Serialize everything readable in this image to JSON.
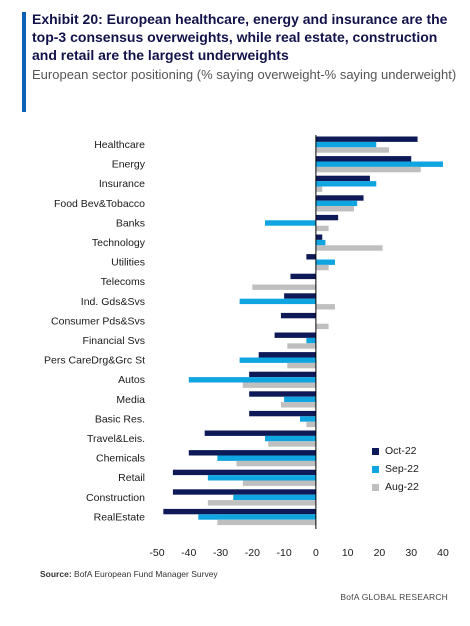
{
  "header": {
    "title": "Exhibit 20: European healthcare, energy and insurance are the top-3 consensus overweights, while real estate, construction and retail are the largest underweights",
    "subtitle": "European sector positioning (% saying overweight-% saying underweight)"
  },
  "footer": {
    "source_label": "Source:",
    "source_text": "BofA European Fund Manager Survey",
    "brand": "BofA GLOBAL RESEARCH"
  },
  "colors": {
    "oct": "#0e1a57",
    "sep": "#0ea5e0",
    "aug": "#bfbfbf"
  },
  "chart_data": {
    "type": "bar",
    "orientation": "horizontal",
    "categories": [
      "Healthcare",
      "Energy",
      "Insurance",
      "Food Bev&Tobacco",
      "Banks",
      "Technology",
      "Utilities",
      "Telecoms",
      "Ind. Gds&Svs",
      "Consumer Pds&Svs",
      "Financial Svs",
      "Pers CareDrg&Grc St",
      "Autos",
      "Media",
      "Basic Res.",
      "Travel&Leis.",
      "Chemicals",
      "Retail",
      "Construction",
      "RealEstate"
    ],
    "series": [
      {
        "name": "Oct-22",
        "values": [
          32,
          30,
          17,
          15,
          7,
          2,
          -3,
          -8,
          -10,
          -11,
          -13,
          -18,
          -21,
          -21,
          -21,
          -35,
          -40,
          -45,
          -45,
          -48
        ]
      },
      {
        "name": "Sep-22",
        "values": [
          19,
          40,
          19,
          13,
          -16,
          3,
          6,
          0,
          -24,
          0,
          -3,
          -24,
          -40,
          -10,
          -5,
          -16,
          -31,
          -34,
          -26,
          -37
        ]
      },
      {
        "name": "Aug-22",
        "values": [
          23,
          33,
          2,
          12,
          4,
          21,
          4,
          -20,
          6,
          4,
          -9,
          -9,
          -23,
          -11,
          -3,
          -15,
          -25,
          -23,
          -34,
          -31
        ]
      }
    ],
    "xlim": [
      -50,
      40
    ],
    "xticks": [
      -50,
      -40,
      -30,
      -20,
      -10,
      0,
      10,
      20,
      30,
      40
    ],
    "legend_position": "bottom-right",
    "grid": false
  }
}
